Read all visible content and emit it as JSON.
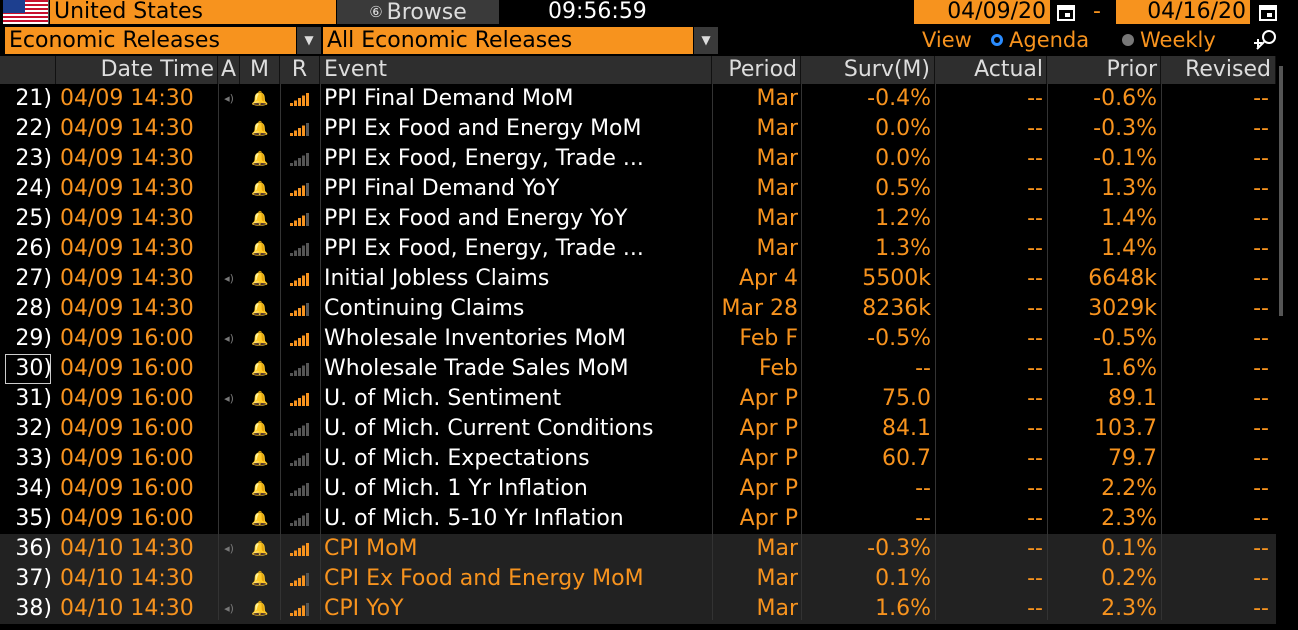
{
  "header": {
    "country": "United States",
    "browse": "Browse",
    "time": "09:56:59",
    "date_from": "04/09/20",
    "date_to": "04/16/20",
    "date_sep": "-"
  },
  "filters": {
    "source": "Economic Releases",
    "filter": "All Economic Releases",
    "view_label": "View",
    "view_agenda": "Agenda",
    "view_weekly": "Weekly"
  },
  "colors": {
    "accent": "#f7931e",
    "selected_radio": "#2a8cff"
  },
  "columns": {
    "datetime": "Date Time",
    "a": "A",
    "m": "M",
    "r": "R",
    "event": "Event",
    "period": "Period",
    "surv": "Surv(M)",
    "actual": "Actual",
    "prior": "Prior",
    "revised": "Revised"
  },
  "rows": [
    {
      "num": "21)",
      "dt": "04/09 14:30",
      "alert": true,
      "rel": 5,
      "event": "PPI Final Demand MoM",
      "period": "Mar",
      "surv": "-0.4%",
      "actual": "--",
      "prior": "-0.6%",
      "revised": "--"
    },
    {
      "num": "22)",
      "dt": "04/09 14:30",
      "alert": false,
      "rel": 4,
      "event": "PPI Ex Food and Energy MoM",
      "period": "Mar",
      "surv": "0.0%",
      "actual": "--",
      "prior": "-0.3%",
      "revised": "--"
    },
    {
      "num": "23)",
      "dt": "04/09 14:30",
      "alert": false,
      "rel": 0,
      "event": "PPI Ex Food, Energy, Trade ...",
      "period": "Mar",
      "surv": "0.0%",
      "actual": "--",
      "prior": "-0.1%",
      "revised": "--"
    },
    {
      "num": "24)",
      "dt": "04/09 14:30",
      "alert": false,
      "rel": 4,
      "event": "PPI Final Demand YoY",
      "period": "Mar",
      "surv": "0.5%",
      "actual": "--",
      "prior": "1.3%",
      "revised": "--"
    },
    {
      "num": "25)",
      "dt": "04/09 14:30",
      "alert": false,
      "rel": 4,
      "event": "PPI Ex Food and Energy YoY",
      "period": "Mar",
      "surv": "1.2%",
      "actual": "--",
      "prior": "1.4%",
      "revised": "--"
    },
    {
      "num": "26)",
      "dt": "04/09 14:30",
      "alert": false,
      "rel": 0,
      "event": "PPI Ex Food, Energy, Trade ...",
      "period": "Mar",
      "surv": "1.3%",
      "actual": "--",
      "prior": "1.4%",
      "revised": "--"
    },
    {
      "num": "27)",
      "dt": "04/09 14:30",
      "alert": true,
      "rel": 5,
      "event": "Initial Jobless Claims",
      "period": "Apr 4",
      "surv": "5500k",
      "actual": "--",
      "prior": "6648k",
      "revised": "--"
    },
    {
      "num": "28)",
      "dt": "04/09 14:30",
      "alert": false,
      "rel": 4,
      "event": "Continuing Claims",
      "period": "Mar 28",
      "surv": "8236k",
      "actual": "--",
      "prior": "3029k",
      "revised": "--"
    },
    {
      "num": "29)",
      "dt": "04/09 16:00",
      "alert": true,
      "rel": 5,
      "event": "Wholesale Inventories MoM",
      "period": "Feb F",
      "surv": "-0.5%",
      "actual": "--",
      "prior": "-0.5%",
      "revised": "--"
    },
    {
      "num": "30)",
      "dt": "04/09 16:00",
      "alert": false,
      "rel": 0,
      "event": "Wholesale Trade Sales MoM",
      "period": "Feb",
      "surv": "--",
      "actual": "--",
      "prior": "1.6%",
      "revised": "--"
    },
    {
      "num": "31)",
      "dt": "04/09 16:00",
      "alert": true,
      "rel": 5,
      "event": "U. of Mich. Sentiment",
      "period": "Apr P",
      "surv": "75.0",
      "actual": "--",
      "prior": "89.1",
      "revised": "--"
    },
    {
      "num": "32)",
      "dt": "04/09 16:00",
      "alert": false,
      "rel": 0,
      "event": "U. of Mich. Current Conditions",
      "period": "Apr P",
      "surv": "84.1",
      "actual": "--",
      "prior": "103.7",
      "revised": "--"
    },
    {
      "num": "33)",
      "dt": "04/09 16:00",
      "alert": false,
      "rel": 0,
      "event": "U. of Mich. Expectations",
      "period": "Apr P",
      "surv": "60.7",
      "actual": "--",
      "prior": "79.7",
      "revised": "--"
    },
    {
      "num": "34)",
      "dt": "04/09 16:00",
      "alert": false,
      "rel": 0,
      "event": "U. of Mich. 1 Yr Inflation",
      "period": "Apr P",
      "surv": "--",
      "actual": "--",
      "prior": "2.2%",
      "revised": "--"
    },
    {
      "num": "35)",
      "dt": "04/09 16:00",
      "alert": false,
      "rel": 0,
      "event": "U. of Mich. 5-10 Yr Inflation",
      "period": "Apr P",
      "surv": "--",
      "actual": "--",
      "prior": "2.3%",
      "revised": "--"
    },
    {
      "num": "36)",
      "dt": "04/10 14:30",
      "alert": true,
      "rel": 5,
      "event": "CPI MoM",
      "period": "Mar",
      "surv": "-0.3%",
      "actual": "--",
      "prior": "0.1%",
      "revised": "--"
    },
    {
      "num": "37)",
      "dt": "04/10 14:30",
      "alert": false,
      "rel": 4,
      "event": "CPI Ex Food and Energy MoM",
      "period": "Mar",
      "surv": "0.1%",
      "actual": "--",
      "prior": "0.2%",
      "revised": "--"
    },
    {
      "num": "38)",
      "dt": "04/10 14:30",
      "alert": true,
      "rel": 4,
      "event": "CPI YoY",
      "period": "Mar",
      "surv": "1.6%",
      "actual": "--",
      "prior": "2.3%",
      "revised": "--"
    }
  ]
}
